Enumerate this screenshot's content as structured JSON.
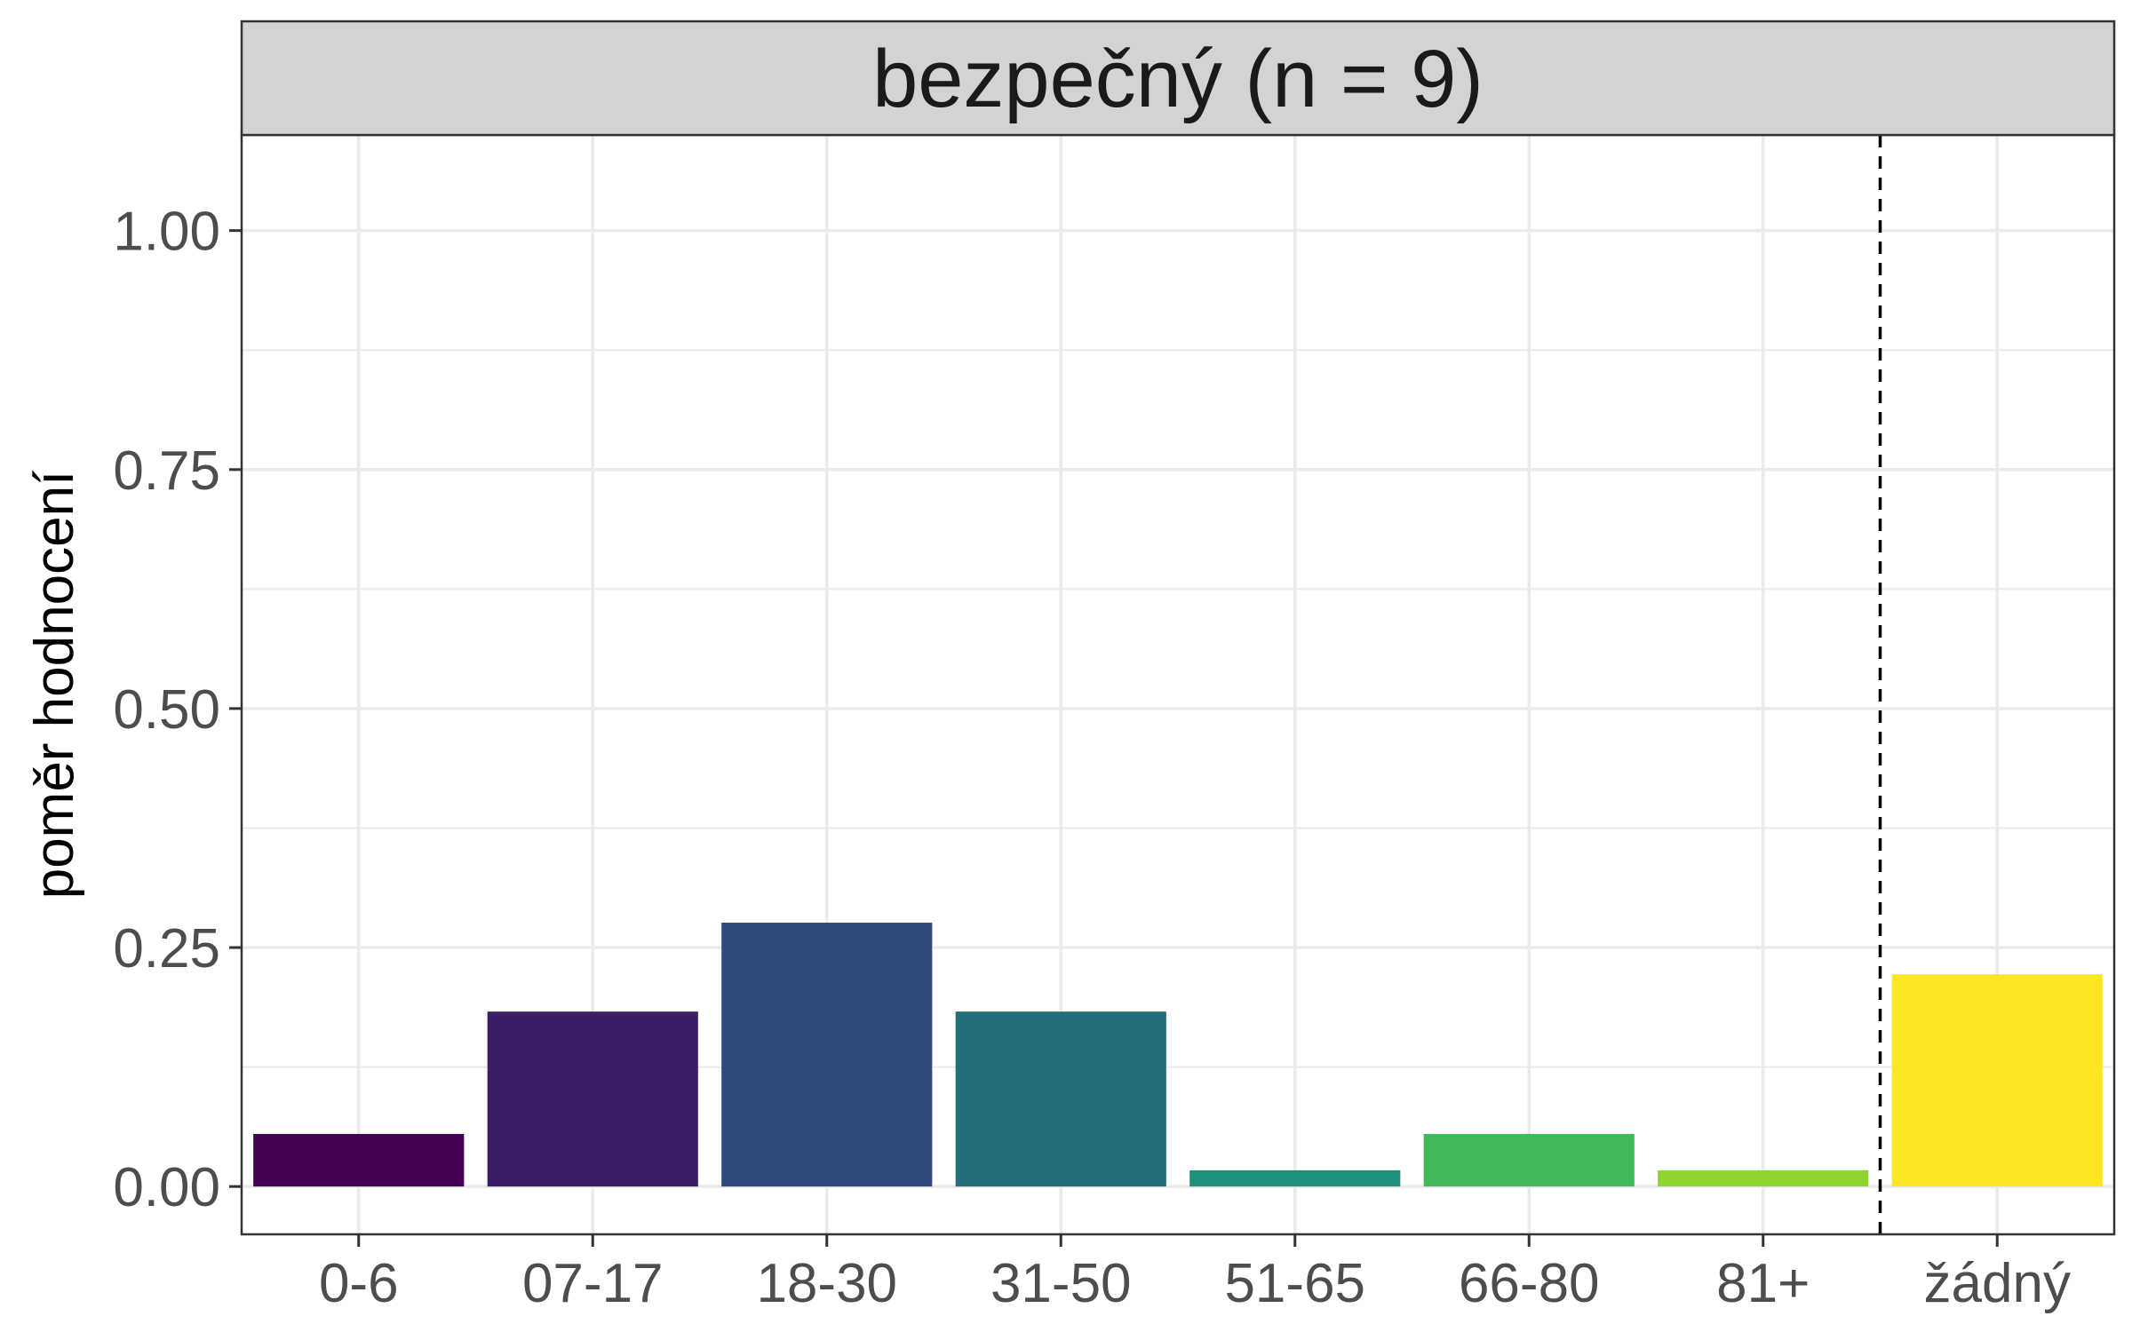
{
  "chart_data": {
    "type": "bar",
    "title": "bezpečný (n = 9)",
    "xlabel": "",
    "ylabel": "poměr hodnocení",
    "categories": [
      "0-6",
      "07-17",
      "18-30",
      "31-50",
      "51-65",
      "66-80",
      "81+",
      "žádný"
    ],
    "values": [
      0.055,
      0.183,
      0.276,
      0.183,
      0.017,
      0.055,
      0.017,
      0.222
    ],
    "colors": [
      "#440154",
      "#3b1f66",
      "#2e4a7a",
      "#236e7b",
      "#1f917a",
      "#40b858",
      "#8fd42e",
      "#fde725"
    ],
    "ylim": [
      -0.05,
      1.1
    ],
    "yticks": [
      0.0,
      0.25,
      0.5,
      0.75,
      1.0
    ],
    "ytick_labels": [
      "0.00",
      "0.25",
      "0.50",
      "0.75",
      "1.00"
    ],
    "grid": true,
    "separator_after_category": "81+",
    "separator_style": "dashed",
    "strip_color": "#d3d3d3",
    "panel_border_color": "#333333",
    "grid_color": "#ebebeb"
  }
}
